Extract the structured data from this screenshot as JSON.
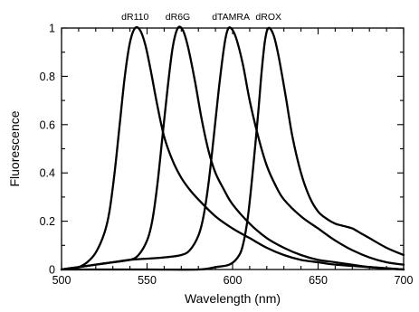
{
  "chart_data": {
    "type": "line",
    "title": "",
    "xlabel": "Wavelength (nm)",
    "ylabel": "Fluorescence",
    "xlim": [
      500,
      700
    ],
    "ylim": [
      0,
      1
    ],
    "x_ticks": [
      500,
      550,
      600,
      650,
      700
    ],
    "x_tick_labels": [
      "500",
      "550",
      "600",
      "650",
      "700"
    ],
    "y_ticks": [
      0,
      0.2,
      0.4,
      0.6,
      0.8,
      1
    ],
    "y_tick_labels": [
      "0",
      "0.2",
      "0.4",
      "0.6",
      "0.8",
      "1"
    ],
    "grid": false,
    "legend": "none (series labelled above peaks)",
    "series": [
      {
        "name": "dR110",
        "points": [
          [
            500,
            0.0
          ],
          [
            505,
            0.005
          ],
          [
            510,
            0.01
          ],
          [
            515,
            0.03
          ],
          [
            520,
            0.07
          ],
          [
            525,
            0.15
          ],
          [
            528,
            0.24
          ],
          [
            531,
            0.4
          ],
          [
            534,
            0.6
          ],
          [
            537,
            0.8
          ],
          [
            540,
            0.94
          ],
          [
            543,
            1.0
          ],
          [
            546,
            0.99
          ],
          [
            549,
            0.93
          ],
          [
            552,
            0.83
          ],
          [
            556,
            0.68
          ],
          [
            560,
            0.55
          ],
          [
            565,
            0.45
          ],
          [
            570,
            0.38
          ],
          [
            575,
            0.33
          ],
          [
            580,
            0.29
          ],
          [
            590,
            0.22
          ],
          [
            600,
            0.17
          ],
          [
            610,
            0.13
          ],
          [
            620,
            0.09
          ],
          [
            630,
            0.06
          ],
          [
            640,
            0.04
          ],
          [
            650,
            0.03
          ],
          [
            660,
            0.02
          ],
          [
            680,
            0.01
          ],
          [
            700,
            0.0
          ]
        ]
      },
      {
        "name": "dR6G",
        "points": [
          [
            500,
            0.0
          ],
          [
            510,
            0.01
          ],
          [
            520,
            0.02
          ],
          [
            530,
            0.03
          ],
          [
            540,
            0.04
          ],
          [
            545,
            0.06
          ],
          [
            550,
            0.12
          ],
          [
            553,
            0.2
          ],
          [
            556,
            0.35
          ],
          [
            559,
            0.55
          ],
          [
            562,
            0.75
          ],
          [
            565,
            0.92
          ],
          [
            568,
            1.0
          ],
          [
            571,
            0.99
          ],
          [
            574,
            0.92
          ],
          [
            578,
            0.78
          ],
          [
            582,
            0.62
          ],
          [
            586,
            0.49
          ],
          [
            590,
            0.4
          ],
          [
            595,
            0.33
          ],
          [
            600,
            0.27
          ],
          [
            610,
            0.19
          ],
          [
            620,
            0.13
          ],
          [
            630,
            0.09
          ],
          [
            640,
            0.06
          ],
          [
            650,
            0.04
          ],
          [
            660,
            0.03
          ],
          [
            680,
            0.01
          ],
          [
            700,
            0.0
          ]
        ]
      },
      {
        "name": "dTAMRA",
        "points": [
          [
            500,
            0.0
          ],
          [
            510,
            0.01
          ],
          [
            520,
            0.02
          ],
          [
            530,
            0.03
          ],
          [
            540,
            0.04
          ],
          [
            550,
            0.045
          ],
          [
            560,
            0.05
          ],
          [
            570,
            0.06
          ],
          [
            575,
            0.08
          ],
          [
            580,
            0.14
          ],
          [
            583,
            0.22
          ],
          [
            586,
            0.36
          ],
          [
            589,
            0.55
          ],
          [
            592,
            0.75
          ],
          [
            595,
            0.92
          ],
          [
            597,
            0.99
          ],
          [
            599,
            1.0
          ],
          [
            602,
            0.96
          ],
          [
            606,
            0.85
          ],
          [
            610,
            0.7
          ],
          [
            615,
            0.55
          ],
          [
            620,
            0.43
          ],
          [
            625,
            0.35
          ],
          [
            630,
            0.29
          ],
          [
            640,
            0.22
          ],
          [
            650,
            0.17
          ],
          [
            660,
            0.12
          ],
          [
            670,
            0.08
          ],
          [
            680,
            0.05
          ],
          [
            690,
            0.03
          ],
          [
            700,
            0.02
          ]
        ]
      },
      {
        "name": "dROX",
        "points": [
          [
            500,
            0.0
          ],
          [
            550,
            0.0
          ],
          [
            580,
            0.0
          ],
          [
            590,
            0.01
          ],
          [
            598,
            0.02
          ],
          [
            603,
            0.05
          ],
          [
            606,
            0.1
          ],
          [
            609,
            0.22
          ],
          [
            612,
            0.42
          ],
          [
            615,
            0.65
          ],
          [
            617,
            0.82
          ],
          [
            619,
            0.95
          ],
          [
            621,
            1.0
          ],
          [
            624,
            0.97
          ],
          [
            627,
            0.88
          ],
          [
            631,
            0.72
          ],
          [
            635,
            0.55
          ],
          [
            640,
            0.4
          ],
          [
            645,
            0.3
          ],
          [
            650,
            0.24
          ],
          [
            655,
            0.21
          ],
          [
            660,
            0.19
          ],
          [
            665,
            0.18
          ],
          [
            670,
            0.17
          ],
          [
            675,
            0.15
          ],
          [
            680,
            0.13
          ],
          [
            690,
            0.09
          ],
          [
            700,
            0.06
          ]
        ]
      }
    ]
  }
}
